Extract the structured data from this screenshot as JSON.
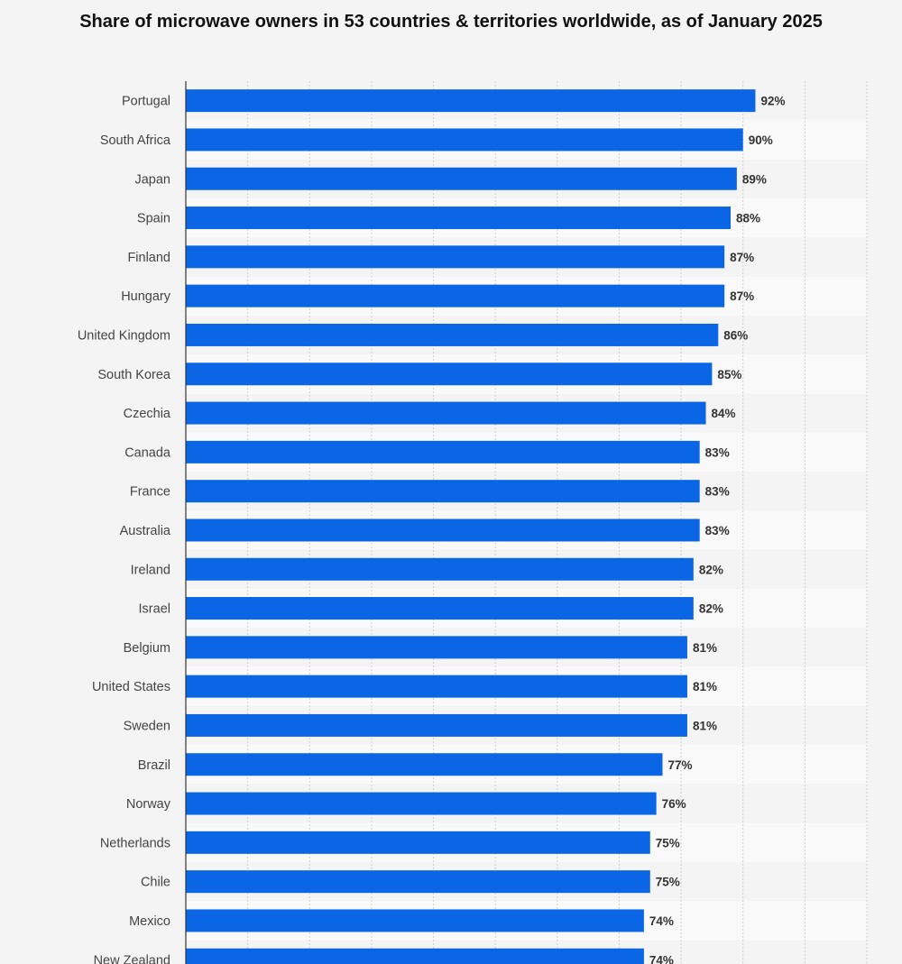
{
  "chart_data": {
    "type": "bar",
    "orientation": "horizontal",
    "title": "Share of microwave owners in 53 countries & territories worldwide, as of January 2025",
    "xlabel": "",
    "ylabel": "",
    "xlim": [
      0,
      110
    ],
    "grid": true,
    "value_suffix": "%",
    "bar_color": "#0a66e4",
    "categories": [
      "Portugal",
      "South Africa",
      "Japan",
      "Spain",
      "Finland",
      "Hungary",
      "United Kingdom",
      "South Korea",
      "Czechia",
      "Canada",
      "France",
      "Australia",
      "Ireland",
      "Israel",
      "Belgium",
      "United States",
      "Sweden",
      "Brazil",
      "Norway",
      "Netherlands",
      "Chile",
      "Mexico",
      "New Zealand"
    ],
    "values": [
      92,
      90,
      89,
      88,
      87,
      87,
      86,
      85,
      84,
      83,
      83,
      83,
      82,
      82,
      81,
      81,
      81,
      77,
      76,
      75,
      75,
      74,
      74
    ],
    "data_labels": [
      "92%",
      "90%",
      "89%",
      "88%",
      "87%",
      "87%",
      "86%",
      "85%",
      "84%",
      "83%",
      "83%",
      "83%",
      "82%",
      "82%",
      "81%",
      "81%",
      "81%",
      "77%",
      "76%",
      "75%",
      "75%",
      "74%",
      "74%"
    ]
  }
}
